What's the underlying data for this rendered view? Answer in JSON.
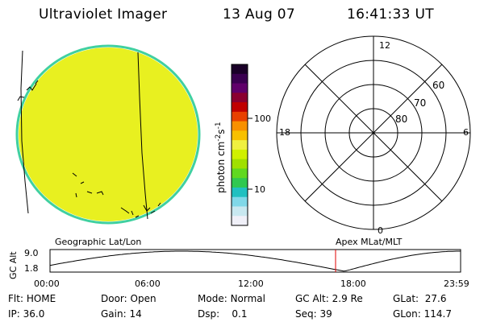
{
  "header": {
    "instrument": "Ultraviolet Imager",
    "date": "13 Aug 07",
    "time": "16:41:33 UT"
  },
  "colorbar": {
    "unit_label": "photon cm",
    "unit_exp1": "-2",
    "unit_s": "s",
    "unit_exp2": "-1",
    "ticks": [
      "100",
      "10"
    ],
    "colors_top_to_bottom": [
      "#1a0028",
      "#3a0050",
      "#60006a",
      "#8a0030",
      "#c00000",
      "#e84000",
      "#f89000",
      "#f8c000",
      "#f0f040",
      "#d0f000",
      "#a0e000",
      "#60d820",
      "#30c850",
      "#20c0c0",
      "#80d8e8",
      "#c8e8f0",
      "#f0f0f8"
    ]
  },
  "image_disk": {
    "fill_color": "#e8f020",
    "edge_color": "#40d0a0"
  },
  "polar_grid": {
    "mlt_labels": [
      "12",
      "18",
      "6",
      "0"
    ],
    "lat_labels": [
      "60",
      "70",
      "80"
    ]
  },
  "orbit_plot": {
    "left_caption": "Geographic Lat/Lon",
    "right_caption": "Apex MLat/MLT",
    "ylabel": "GC Alt",
    "y_ticks": [
      "9.0",
      "1.8"
    ],
    "x_ticks": [
      "00:00",
      "06:00",
      "12:00",
      "18:00",
      "23:59"
    ],
    "current_time_marker_hours": 16.69,
    "marker_color": "#e00000"
  },
  "status": {
    "flt_label": "Flt:",
    "flt_value": "HOME",
    "door_label": "Door:",
    "door_value": "Open",
    "mode_label": "Mode:",
    "mode_value": "Normal",
    "gcalt_label": "GC Alt:",
    "gcalt_value": "2.9 Re",
    "glat_label": "GLat:",
    "glat_value": "27.6",
    "ip_label": "IP:",
    "ip_value": "36.0",
    "gain_label": "Gain:",
    "gain_value": "14",
    "dsp_label": "Dsp:",
    "dsp_value": "0.1",
    "seq_label": "Seq:",
    "seq_value": "39",
    "glon_label": "GLon:",
    "glon_value": "114.7"
  }
}
